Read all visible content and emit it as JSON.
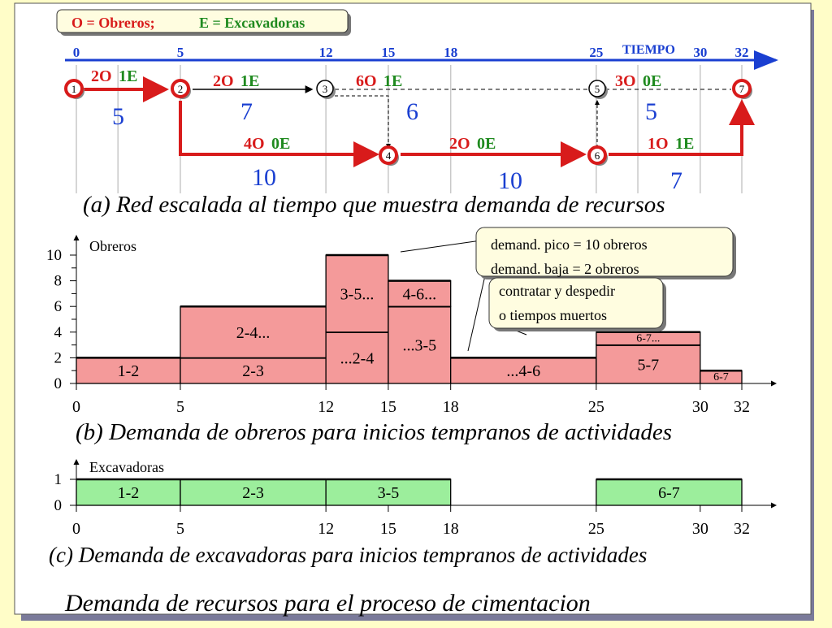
{
  "legend": {
    "obreros": "O = Obreros;",
    "excavadoras": "E = Excavadoras"
  },
  "colors": {
    "blue": "#1a3fd1",
    "red": "#d81b1b",
    "green": "#1f8a1f",
    "workerFill": "#f49a9a",
    "excFill": "#9cee9c",
    "bg": "#fffdc8",
    "panel": "#ffffff"
  },
  "time_axis": {
    "label": "TIEMPO",
    "ticks": [
      "0",
      "5",
      "12",
      "15",
      "18",
      "25",
      "30",
      "32"
    ]
  },
  "network": {
    "nodes": [
      "1",
      "2",
      "3",
      "4",
      "5",
      "6",
      "7"
    ],
    "activities": [
      {
        "id": "1-2",
        "resources_o": "2O",
        "resources_e": "1E",
        "duration": "5"
      },
      {
        "id": "2-3",
        "resources_o": "2O",
        "resources_e": "1E",
        "duration": "7"
      },
      {
        "id": "3-5",
        "resources_o": "6O",
        "resources_e": "1E",
        "duration": "6"
      },
      {
        "id": "5-7",
        "resources_o": "3O",
        "resources_e": "0E",
        "duration": "5"
      },
      {
        "id": "2-4",
        "resources_o": "4O",
        "resources_e": "0E",
        "duration": "10"
      },
      {
        "id": "4-6",
        "resources_o": "2O",
        "resources_e": "0E",
        "duration": "10"
      },
      {
        "id": "6-7",
        "resources_o": "1O",
        "resources_e": "1E",
        "duration": "7"
      }
    ],
    "caption": "(a) Red escalada al tiempo que muestra demanda de recursos"
  },
  "chart_data": [
    {
      "type": "bar",
      "ylabel": "Obreros",
      "yticks": [
        "0",
        "2",
        "4",
        "6",
        "8",
        "10"
      ],
      "xticks": [
        "0",
        "5",
        "12",
        "15",
        "18",
        "25",
        "30",
        "32"
      ],
      "ylim": [
        0,
        10
      ],
      "blocks": [
        {
          "label": "1-2",
          "x0": 0,
          "x1": 5,
          "y0": 0,
          "y1": 2
        },
        {
          "label": "2-3",
          "x0": 5,
          "x1": 12,
          "y0": 0,
          "y1": 2
        },
        {
          "label": "2-4...",
          "x0": 5,
          "x1": 12,
          "y0": 2,
          "y1": 6
        },
        {
          "label": "...2-4",
          "x0": 12,
          "x1": 15,
          "y0": 0,
          "y1": 4
        },
        {
          "label": "3-5...",
          "x0": 12,
          "x1": 15,
          "y0": 4,
          "y1": 10
        },
        {
          "label": "...3-5",
          "x0": 15,
          "x1": 18,
          "y0": 0,
          "y1": 6
        },
        {
          "label": "4-6...",
          "x0": 15,
          "x1": 18,
          "y0": 6,
          "y1": 8
        },
        {
          "label": "...4-6",
          "x0": 18,
          "x1": 25,
          "y0": 0,
          "y1": 2
        },
        {
          "label": "5-7",
          "x0": 25,
          "x1": 30,
          "y0": 0,
          "y1": 3
        },
        {
          "label": "6-7...",
          "x0": 25,
          "x1": 30,
          "y0": 3,
          "y1": 4
        },
        {
          "label": "6-7",
          "x0": 30,
          "x1": 32,
          "y0": 0,
          "y1": 1
        }
      ],
      "caption": "(b) Demanda de obreros para inicios tempranos de actividades"
    },
    {
      "type": "bar",
      "ylabel": "Excavadoras",
      "yticks": [
        "0",
        "1"
      ],
      "xticks": [
        "0",
        "5",
        "12",
        "15",
        "18",
        "25",
        "30",
        "32"
      ],
      "ylim": [
        0,
        1
      ],
      "blocks": [
        {
          "label": "1-2",
          "x0": 0,
          "x1": 5,
          "y0": 0,
          "y1": 1
        },
        {
          "label": "2-3",
          "x0": 5,
          "x1": 12,
          "y0": 0,
          "y1": 1
        },
        {
          "label": "3-5",
          "x0": 12,
          "x1": 18,
          "y0": 0,
          "y1": 1
        },
        {
          "label": "6-7",
          "x0": 25,
          "x1": 32,
          "y0": 0,
          "y1": 1
        }
      ],
      "caption": "(c) Demanda de excavadoras para inicios tempranos de actividades"
    }
  ],
  "callouts": {
    "peak": "demand. pico = 10 obreros",
    "low": "demand. baja =  2 obreros",
    "hire1": "contratar y despedir",
    "hire2": "o tiempos muertos"
  },
  "main_title": "Demanda de recursos para el proceso de cimentacion"
}
